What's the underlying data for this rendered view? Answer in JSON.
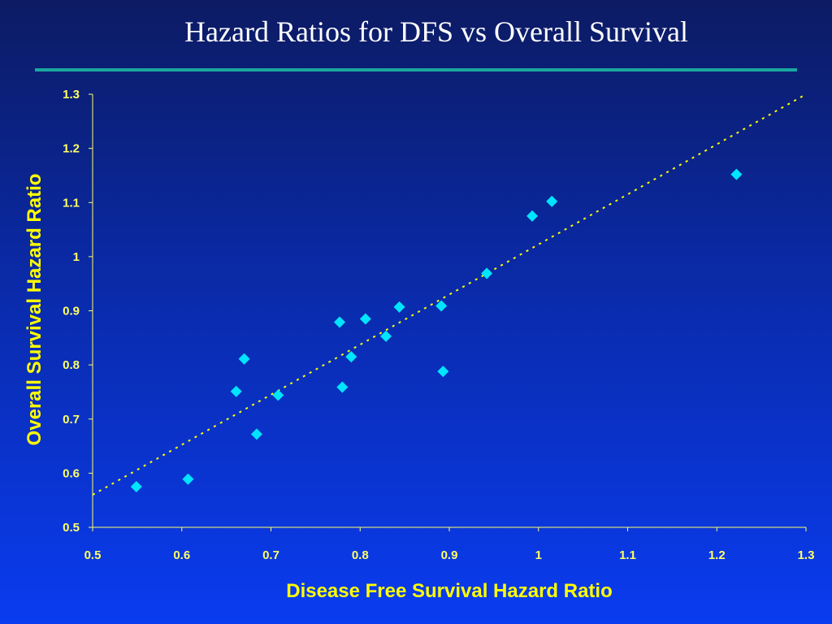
{
  "slide": {
    "title": "Hazard Ratios for DFS vs Overall Survival"
  },
  "colors": {
    "point": "#00e5ff",
    "axis": "#ffff66",
    "title_rule": "#1aa6a0",
    "trendline": "#ffff00"
  },
  "chart_data": {
    "type": "scatter",
    "xlabel": "Disease Free Survival Hazard Ratio",
    "ylabel": "Overall Survival Hazard Ratio",
    "xlim": [
      0.5,
      1.3
    ],
    "ylim": [
      0.5,
      1.3
    ],
    "x_ticks": [
      "0.5",
      "0.6",
      "0.7",
      "0.8",
      "0.9",
      "1",
      "1.1",
      "1.2",
      "1.3"
    ],
    "y_ticks": [
      "0.5",
      "0.6",
      "0.7",
      "0.8",
      "0.9",
      "1",
      "1.1",
      "1.2",
      "1.3"
    ],
    "marker": "diamond",
    "trendline": {
      "style": "dotted",
      "from": [
        0.5,
        0.56
      ],
      "to": [
        1.3,
        1.3
      ]
    },
    "points": [
      {
        "x": 0.549,
        "y": 0.575
      },
      {
        "x": 0.607,
        "y": 0.589
      },
      {
        "x": 0.661,
        "y": 0.751
      },
      {
        "x": 0.67,
        "y": 0.811
      },
      {
        "x": 0.684,
        "y": 0.672
      },
      {
        "x": 0.708,
        "y": 0.744
      },
      {
        "x": 0.777,
        "y": 0.879
      },
      {
        "x": 0.78,
        "y": 0.759
      },
      {
        "x": 0.79,
        "y": 0.815
      },
      {
        "x": 0.806,
        "y": 0.885
      },
      {
        "x": 0.829,
        "y": 0.853
      },
      {
        "x": 0.844,
        "y": 0.907
      },
      {
        "x": 0.891,
        "y": 0.909
      },
      {
        "x": 0.893,
        "y": 0.788
      },
      {
        "x": 0.942,
        "y": 0.969
      },
      {
        "x": 0.993,
        "y": 1.075
      },
      {
        "x": 1.015,
        "y": 1.102
      },
      {
        "x": 1.222,
        "y": 1.152
      }
    ]
  }
}
